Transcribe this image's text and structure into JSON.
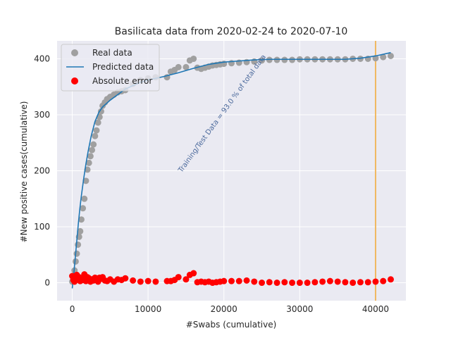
{
  "chart_data": {
    "type": "scatter",
    "title": "Basilicata data  from 2020-02-24 to 2020-07-10",
    "xlabel": "#Swabs (cumulative)",
    "ylabel": "#New positive cases(cumulative)",
    "xlim": [
      -2000,
      44000
    ],
    "ylim": [
      -32,
      432
    ],
    "x_ticks": [
      0,
      10000,
      20000,
      30000,
      40000
    ],
    "x_tick_labels": [
      "0",
      "10000",
      "20000",
      "30000",
      "40000"
    ],
    "y_ticks": [
      0,
      100,
      200,
      300,
      400
    ],
    "y_tick_labels": [
      "0",
      "100",
      "200",
      "300",
      "400"
    ],
    "grid": true,
    "legend_position": "top-left",
    "vline": {
      "x": 40000,
      "color": "#f0b860"
    },
    "annotation": {
      "text": "Training/Test Data = 93.0 % of total data",
      "x": 20000,
      "y": 300,
      "color": "#4c6a9c"
    },
    "colors": {
      "real": "#a0a0a0",
      "predicted": "#1f77b4",
      "error": "#ff0000",
      "background": "#eaeaf2",
      "grid": "#ffffff"
    },
    "series": [
      {
        "name": "Real data",
        "kind": "scatter",
        "x": [
          0,
          150,
          300,
          450,
          600,
          750,
          900,
          1050,
          1200,
          1400,
          1600,
          1800,
          2000,
          2200,
          2400,
          2600,
          2800,
          3000,
          3200,
          3400,
          3600,
          3800,
          4000,
          4300,
          4600,
          5000,
          5500,
          6000,
          6500,
          7000,
          8000,
          9000,
          10000,
          11000,
          12500,
          13000,
          13500,
          14000,
          15000,
          15500,
          16000,
          16500,
          17000,
          17500,
          18000,
          18500,
          19000,
          19500,
          20000,
          21000,
          22000,
          23000,
          24000,
          25000,
          26000,
          27000,
          28000,
          29000,
          30000,
          31000,
          32000,
          33000,
          34000,
          35000,
          36000,
          37000,
          38000,
          39000,
          40000,
          41000,
          42000
        ],
        "y": [
          2,
          10,
          22,
          38,
          52,
          68,
          82,
          92,
          113,
          133,
          150,
          182,
          202,
          214,
          226,
          237,
          247,
          262,
          272,
          286,
          296,
          306,
          316,
          322,
          328,
          332,
          336,
          340,
          342,
          344,
          355,
          362,
          365,
          367,
          367,
          377,
          380,
          385,
          385,
          397,
          400,
          384,
          382,
          384,
          386,
          388,
          389,
          390,
          391,
          392,
          393,
          394,
          395,
          397,
          398,
          398,
          398,
          398,
          399,
          399,
          399,
          399,
          399,
          399,
          399,
          400,
          400,
          400,
          401,
          403,
          405
        ]
      },
      {
        "name": "Predicted data",
        "kind": "line",
        "x": [
          0,
          200,
          400,
          600,
          800,
          1000,
          1200,
          1500,
          1800,
          2100,
          2500,
          3000,
          3500,
          4000,
          4500,
          5000,
          6000,
          7000,
          8000,
          9000,
          10000,
          12000,
          14000,
          16000,
          18000,
          20000,
          22000,
          24000,
          26000,
          28000,
          30000,
          32000,
          34000,
          36000,
          38000,
          40000,
          42000
        ],
        "y": [
          -10,
          15,
          45,
          75,
          105,
          132,
          155,
          185,
          212,
          235,
          262,
          288,
          304,
          314,
          320,
          326,
          336,
          346,
          352,
          358,
          362,
          368,
          375,
          383,
          390,
          394,
          396,
          398,
          399,
          399,
          399,
          399,
          399,
          399,
          401,
          405,
          411
        ]
      },
      {
        "name": "Absolute error",
        "kind": "scatter",
        "x": [
          0,
          150,
          300,
          450,
          600,
          750,
          900,
          1050,
          1200,
          1400,
          1600,
          1800,
          2000,
          2200,
          2400,
          2600,
          2800,
          3000,
          3200,
          3400,
          3600,
          3800,
          4000,
          4300,
          4600,
          5000,
          5500,
          6000,
          6500,
          7000,
          8000,
          9000,
          10000,
          11000,
          12500,
          13000,
          13500,
          14000,
          15000,
          15500,
          16000,
          16500,
          17000,
          17500,
          18000,
          18500,
          19000,
          19500,
          20000,
          21000,
          22000,
          23000,
          24000,
          25000,
          26000,
          27000,
          28000,
          29000,
          30000,
          31000,
          32000,
          33000,
          34000,
          35000,
          36000,
          37000,
          38000,
          39000,
          40000,
          41000,
          42000
        ],
        "y": [
          12,
          5,
          2,
          8,
          14,
          7,
          10,
          3,
          8,
          5,
          15,
          3,
          10,
          8,
          2,
          6,
          4,
          9,
          8,
          2,
          9,
          7,
          10,
          4,
          3,
          6,
          2,
          6,
          5,
          8,
          4,
          2,
          3,
          2,
          3,
          3,
          5,
          10,
          6,
          14,
          17,
          1,
          2,
          1,
          2,
          0,
          1,
          2,
          3,
          3,
          3,
          4,
          2,
          0,
          1,
          0,
          1,
          0,
          0,
          0,
          1,
          2,
          3,
          2,
          1,
          0,
          1,
          1,
          2,
          3,
          6
        ]
      }
    ]
  }
}
